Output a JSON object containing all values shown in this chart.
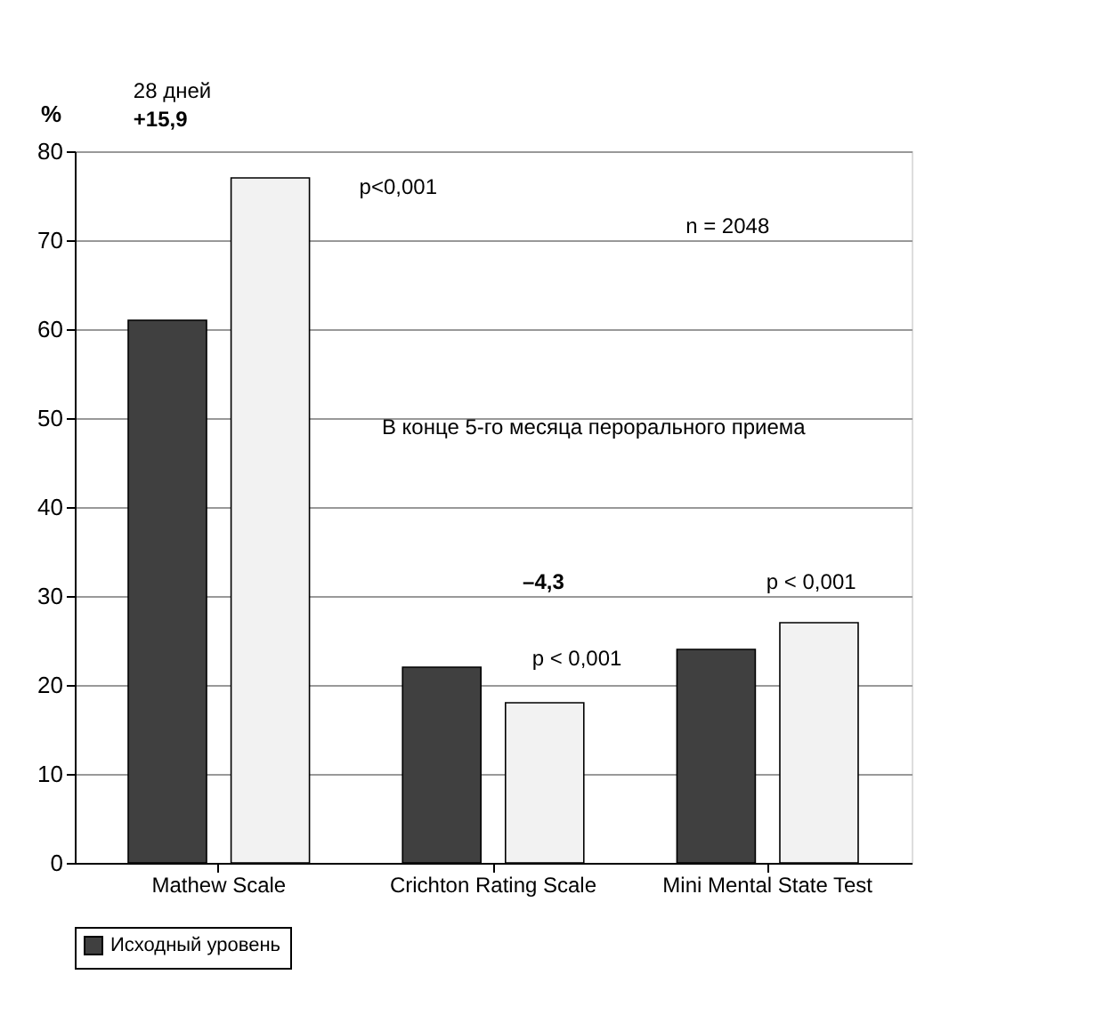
{
  "chart_data": {
    "type": "bar",
    "ylabel": "%",
    "categories": [
      "Mathew Scale",
      "Crichton Rating Scale",
      "Mini Mental State Test"
    ],
    "series": [
      {
        "name": "Исходный уровень",
        "color": "#404040",
        "values": [
          61,
          22,
          24
        ]
      },
      {
        "color": "#f2f2f2",
        "values": [
          77,
          18,
          27
        ]
      }
    ],
    "ylim": [
      0,
      80
    ],
    "yticks": [
      0,
      10,
      20,
      30,
      40,
      50,
      60,
      70,
      80
    ],
    "grid": "y",
    "legend": "bottom",
    "annotations": [
      "28 дней",
      "+15,9",
      "n = 2048",
      "В конце 5-го месяца перорального приема",
      "–4,3",
      "p<0,001",
      "p < 0,001",
      "p < 0,001"
    ]
  }
}
